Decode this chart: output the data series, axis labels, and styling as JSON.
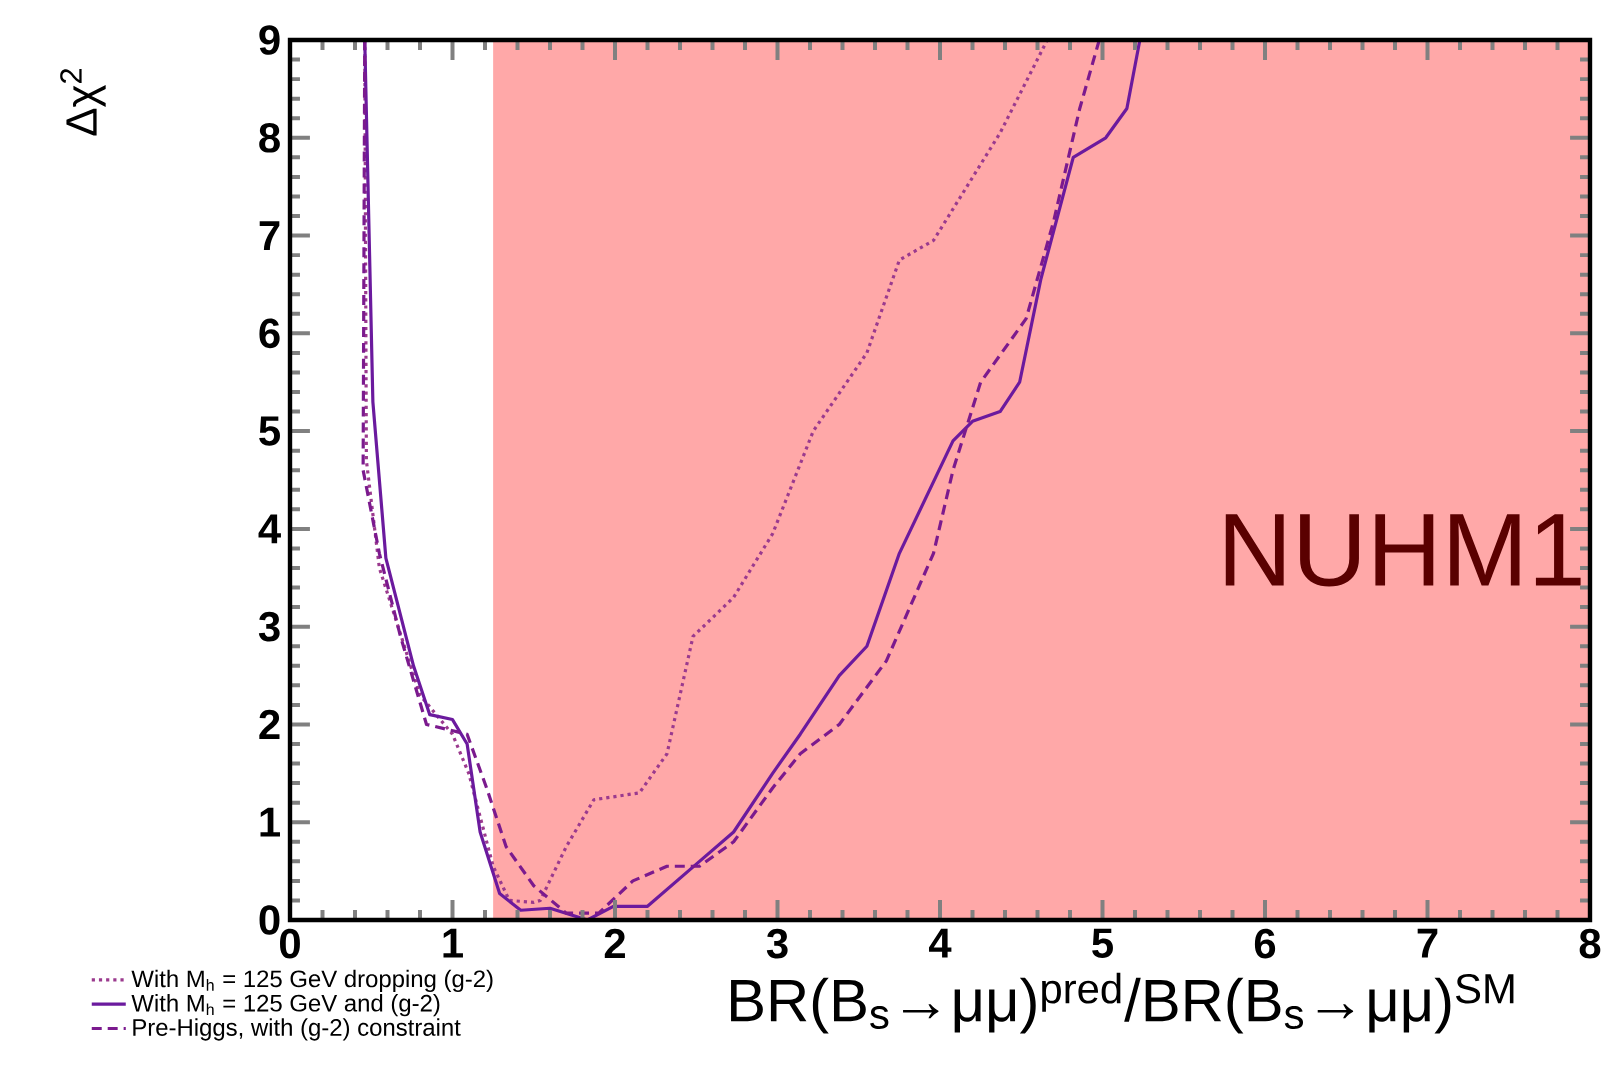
{
  "chart_data": {
    "type": "line",
    "xlabel": "BR(B$_{s}$→μμ)$^{pred}$/BR(B$_{s}$→μμ)$^{SM}$",
    "ylabel": "Δχ$^{2}$",
    "xlim": [
      0,
      8
    ],
    "ylim": [
      0,
      9
    ],
    "xticks": [
      0,
      1,
      2,
      3,
      4,
      5,
      6,
      7,
      8
    ],
    "yticks": [
      0,
      1,
      2,
      3,
      4,
      5,
      6,
      7,
      8,
      9
    ],
    "grid": false,
    "legend": "bottom left",
    "marker": "none",
    "bands": [
      {
        "axis": "x",
        "from": 1.25,
        "to": 8,
        "color": "#ffa8a8"
      }
    ],
    "annotations": [
      "NUHM1"
    ],
    "series": [
      {
        "name": "With M$_{h}$ = 125 GeV dropping (g-2)",
        "color": "#9b3a8e",
        "line_style": "dotted",
        "x": [
          0.46,
          0.47,
          0.55,
          0.8,
          1.0,
          1.1,
          1.25,
          1.35,
          1.5,
          1.54,
          1.7,
          1.87,
          2.15,
          2.32,
          2.48,
          2.73,
          2.97,
          3.22,
          3.55,
          3.75,
          3.96,
          4.37,
          4.66
        ],
        "values": [
          9,
          4.7,
          3.6,
          2.3,
          1.9,
          1.5,
          0.55,
          0.2,
          0.18,
          0.2,
          0.75,
          1.23,
          1.3,
          1.7,
          2.9,
          3.3,
          3.95,
          5.0,
          5.8,
          6.75,
          6.95,
          8.05,
          9
        ]
      },
      {
        "name": "With M$_{h}$ = 125 GeV and (g-2)",
        "color": "#6b1a9e",
        "line_style": "solid",
        "x": [
          0.46,
          0.51,
          0.59,
          0.76,
          0.86,
          1.0,
          1.09,
          1.17,
          1.29,
          1.42,
          1.6,
          1.83,
          1.99,
          2.2,
          2.52,
          2.73,
          2.97,
          3.14,
          3.38,
          3.55,
          3.75,
          4.08,
          4.2,
          4.37,
          4.49,
          4.62,
          4.82,
          5.02,
          5.15,
          5.23
        ],
        "values": [
          9,
          5.3,
          3.7,
          2.6,
          2.1,
          2.05,
          1.8,
          0.9,
          0.27,
          0.1,
          0.12,
          0,
          0.14,
          0.14,
          0.6,
          0.9,
          1.5,
          1.9,
          2.5,
          2.8,
          3.75,
          4.9,
          5.1,
          5.2,
          5.5,
          6.55,
          7.8,
          8.0,
          8.3,
          9
        ]
      },
      {
        "name": "Pre-Higgs, with (g-2) constraint",
        "color": "#7b1a8e",
        "line_style": "dashed",
        "x": [
          0.46,
          0.45,
          0.55,
          0.68,
          0.84,
          1.09,
          1.21,
          1.33,
          1.5,
          1.7,
          1.9,
          2.11,
          2.32,
          2.52,
          2.73,
          2.97,
          3.14,
          3.38,
          3.67,
          3.96,
          4.08,
          4.25,
          4.53,
          4.7,
          4.86,
          4.98
        ],
        "values": [
          9,
          4.6,
          3.75,
          2.9,
          2.0,
          1.9,
          1.35,
          0.75,
          0.35,
          0.07,
          0.07,
          0.4,
          0.55,
          0.55,
          0.8,
          1.35,
          1.7,
          2.0,
          2.65,
          3.75,
          4.6,
          5.5,
          6.15,
          7.15,
          8.3,
          9
        ]
      }
    ]
  }
}
